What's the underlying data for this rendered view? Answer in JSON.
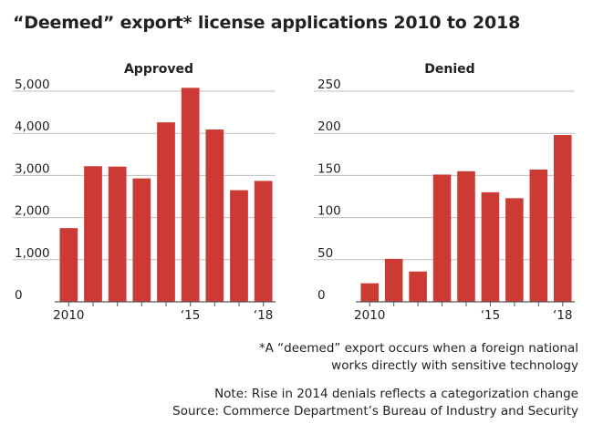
{
  "title": "“Deemed” export* license applications 2010 to 2018",
  "footnote": {
    "line1": "*A “deemed” export occurs when a foreign national",
    "line2": "works directly with sensitive technology"
  },
  "note": "Note: Rise in 2014 denials reflects a categorization change",
  "source": "Source: Commerce Department’s Bureau of Industry and Security",
  "colors": {
    "bar": "#cc3b33",
    "grid": "#bfbfbf",
    "axis": "#555555"
  },
  "chart_data": [
    {
      "type": "bar",
      "title": "Approved",
      "categories": [
        "2010",
        "2011",
        "2012",
        "2013",
        "2014",
        "2015",
        "2016",
        "2017",
        "2018"
      ],
      "x_tick_labels": [
        "2010",
        "",
        "",
        "",
        "",
        "‘15",
        "",
        "",
        "‘18"
      ],
      "values": [
        1750,
        3220,
        3210,
        2930,
        4260,
        5080,
        4090,
        2650,
        2870
      ],
      "ylim": [
        0,
        5000
      ],
      "yticks": [
        0,
        1000,
        2000,
        3000,
        4000,
        5000
      ],
      "ytick_labels": [
        "0",
        "1,000",
        "2,000",
        "3,000",
        "4,000",
        "5,000"
      ],
      "xlabel": "",
      "ylabel": ""
    },
    {
      "type": "bar",
      "title": "Denied",
      "categories": [
        "2010",
        "2011",
        "2012",
        "2013",
        "2014",
        "2015",
        "2016",
        "2017",
        "2018"
      ],
      "x_tick_labels": [
        "2010",
        "",
        "",
        "",
        "",
        "‘15",
        "",
        "",
        "‘18"
      ],
      "values": [
        22,
        51,
        36,
        151,
        155,
        130,
        123,
        157,
        198
      ],
      "ylim": [
        0,
        250
      ],
      "yticks": [
        0,
        50,
        100,
        150,
        200,
        250
      ],
      "ytick_labels": [
        "0",
        "50",
        "100",
        "150",
        "200",
        "250"
      ],
      "xlabel": "",
      "ylabel": ""
    }
  ]
}
